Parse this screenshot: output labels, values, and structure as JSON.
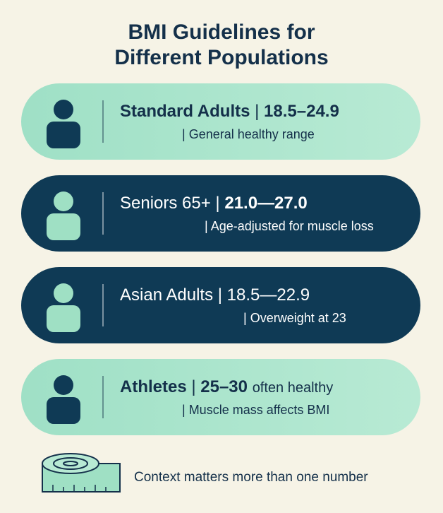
{
  "title": [
    "BMI Guidelines for",
    "Different Populations"
  ],
  "cards": [
    {
      "name": "Standard Adults",
      "range": "18.5–24.9",
      "note": "General healthy range"
    },
    {
      "name": "Seniors 65+",
      "range": "21.0—27.0",
      "note": "Age-adjusted for muscle loss"
    },
    {
      "name": "Asian Adults",
      "range": "18.5—22.9",
      "note": "Overweight at 23"
    },
    {
      "name": "Athletes",
      "range": "25–30",
      "qualifier": "often healthy",
      "note": "Muscle mass affects BMI"
    }
  ],
  "footer": "Context matters more than one number"
}
